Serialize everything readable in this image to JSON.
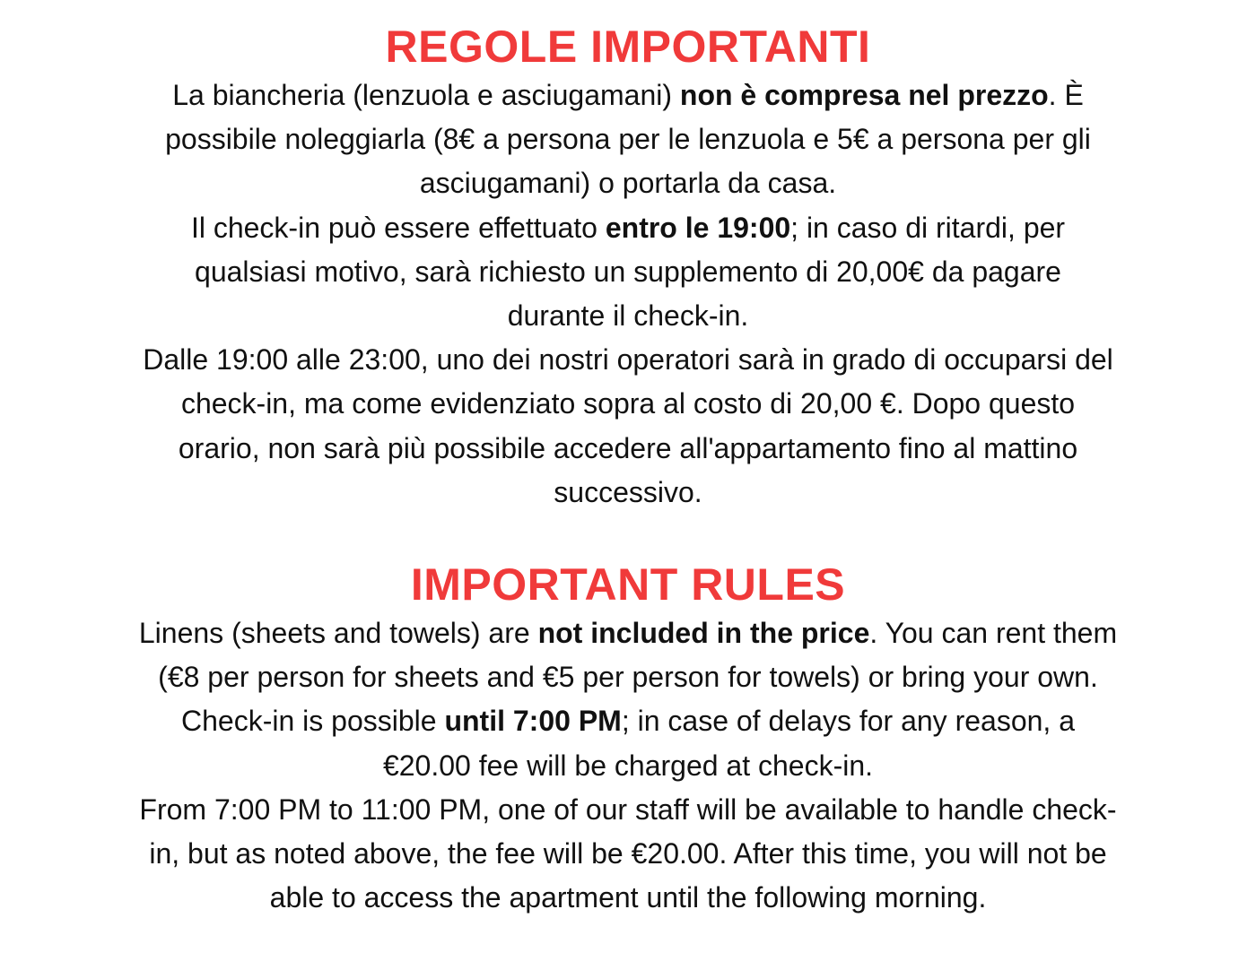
{
  "colors": {
    "title": "#f03a3a",
    "text": "#111111",
    "background": "#ffffff"
  },
  "sections": [
    {
      "title": "REGOLE IMPORTANTI",
      "lines": [
        [
          {
            "t": "La biancheria (lenzuola e asciugamani) "
          },
          {
            "t": "non è compresa nel prezzo",
            "b": true
          },
          {
            "t": ". È"
          }
        ],
        [
          {
            "t": "possibile noleggiarla (8€ a persona per le lenzuola e 5€ a persona per gli"
          }
        ],
        [
          {
            "t": "asciugamani) o portarla da casa."
          }
        ],
        [
          {
            "t": "Il check-in può essere effettuato "
          },
          {
            "t": "entro le 19:00",
            "b": true
          },
          {
            "t": "; in caso di ritardi, per"
          }
        ],
        [
          {
            "t": "qualsiasi motivo, sarà richiesto un supplemento di 20,00€ da pagare"
          }
        ],
        [
          {
            "t": "durante il check-in."
          }
        ],
        [
          {
            "t": "Dalle 19:00 alle 23:00, uno dei nostri operatori sarà in grado di occuparsi del"
          }
        ],
        [
          {
            "t": "check-in, ma come evidenziato sopra al costo di 20,00 €. Dopo questo"
          }
        ],
        [
          {
            "t": "orario, non sarà più possibile accedere all'appartamento fino al mattino"
          }
        ],
        [
          {
            "t": "successivo."
          }
        ]
      ]
    },
    {
      "title": "IMPORTANT RULES",
      "lines": [
        [
          {
            "t": "Linens (sheets and towels) are "
          },
          {
            "t": "not included in the price",
            "b": true
          },
          {
            "t": ". You can rent them"
          }
        ],
        [
          {
            "t": "(€8 per person for sheets and €5 per person for towels) or bring your own."
          }
        ],
        [
          {
            "t": "Check-in is possible "
          },
          {
            "t": "until 7:00 PM",
            "b": true
          },
          {
            "t": "; in case of delays for any reason, a"
          }
        ],
        [
          {
            "t": "€20.00 fee will be charged at check-in."
          }
        ],
        [
          {
            "t": "From 7:00 PM to 11:00 PM, one of our staff will be available to handle check-"
          }
        ],
        [
          {
            "t": "in, but as noted above, the fee will be €20.00. After this time, you will not be"
          }
        ],
        [
          {
            "t": "able to access the apartment until the following morning."
          }
        ]
      ]
    }
  ]
}
